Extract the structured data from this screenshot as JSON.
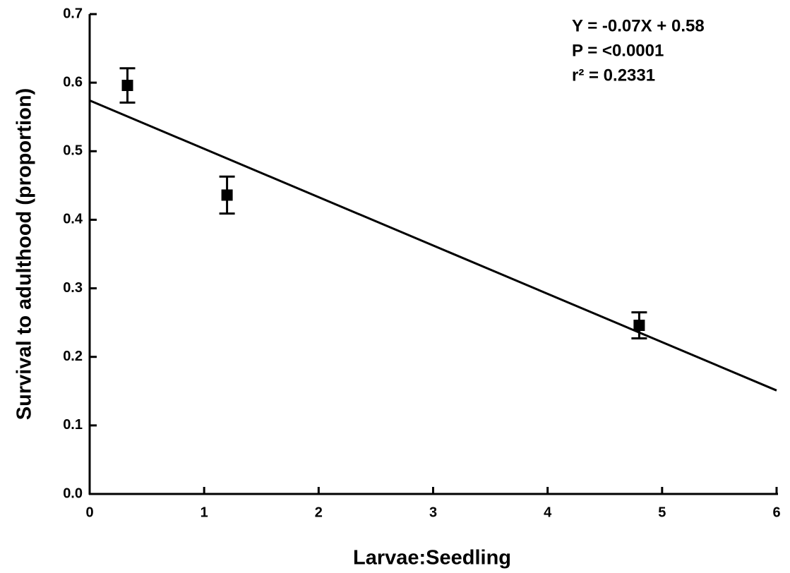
{
  "chart_data": {
    "type": "scatter",
    "xlabel": "Larvae:Seedling",
    "ylabel": "Survival to adulthood (proportion)",
    "annotations": [
      "Y = -0.07X + 0.58",
      "P = <0.0001",
      "r² = 0.2331"
    ],
    "series": [
      {
        "color": "#000000",
        "x": [
          0.33,
          1.2,
          4.8
        ],
        "values": [
          0.596,
          0.436,
          0.246
        ],
        "errors": [
          0.025,
          0.027,
          0.019
        ]
      }
    ],
    "fit": {
      "x": [
        0,
        6
      ],
      "y": [
        0.574,
        0.151
      ],
      "color": "#000000"
    },
    "xlim": [
      0,
      6
    ],
    "ylim": [
      0,
      0.7
    ],
    "xticks": [
      0,
      1,
      2,
      3,
      4,
      5,
      6
    ],
    "yticks": [
      {
        "value": 0,
        "label": "0.0"
      },
      0.1,
      0.2,
      0.3,
      0.4,
      0.5,
      0.6,
      0.7
    ],
    "grid": false
  }
}
